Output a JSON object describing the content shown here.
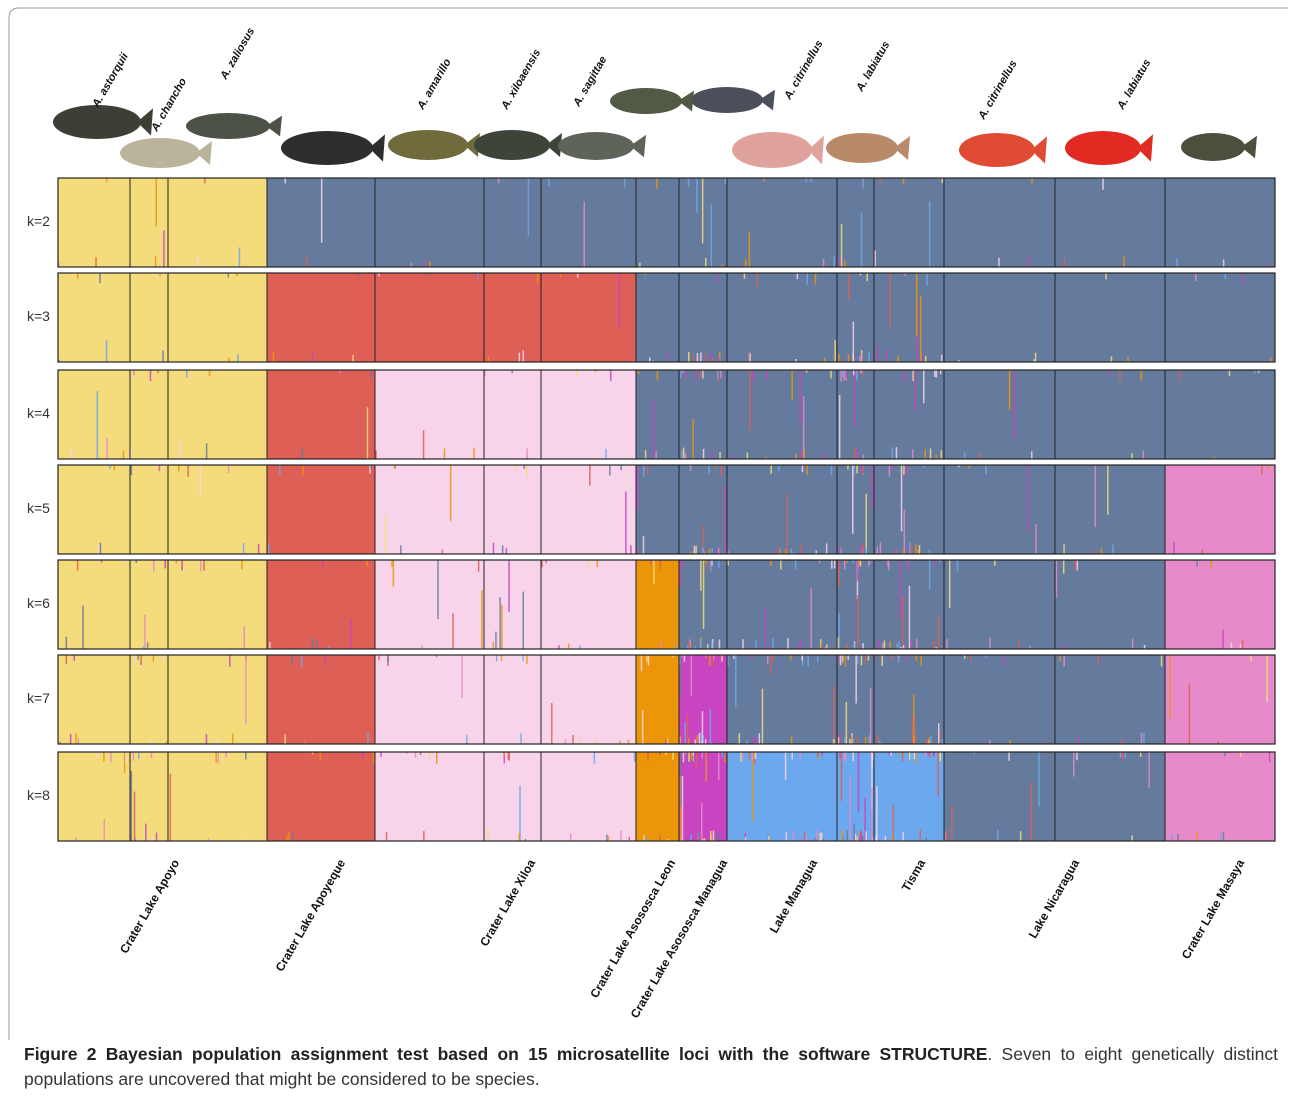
{
  "figure": {
    "species_labels": [
      "A. astorquii",
      "A. chancho",
      "A. zaliosus",
      "A. amarillo",
      "A. xiloaensis",
      "A. sagittae",
      "A. citrinellus",
      "A. labiatus",
      "A. citrinellus",
      "A. labiatus"
    ],
    "k_labels": [
      "k=2",
      "k=3",
      "k=4",
      "k=5",
      "k=6",
      "k=7",
      "k=8"
    ],
    "population_labels": [
      "Crater Lake Apoyo",
      "Crater Lake Apoyeque",
      "Crater Lake Xiloa",
      "Crater Lake Asososca Leon",
      "Crater Lake Asososca Managua",
      "Lake Managua",
      "Tisma",
      "Lake Nicaragua",
      "Crater Lake Masaya"
    ],
    "caption": {
      "label": "Figure 2",
      "title": "Bayesian population assignment test based on 15 microsatellite loci with the software STRUCTURE",
      "text": ". Seven to eight genetically distinct populations are uncovered that might be considered to be species."
    }
  }
}
